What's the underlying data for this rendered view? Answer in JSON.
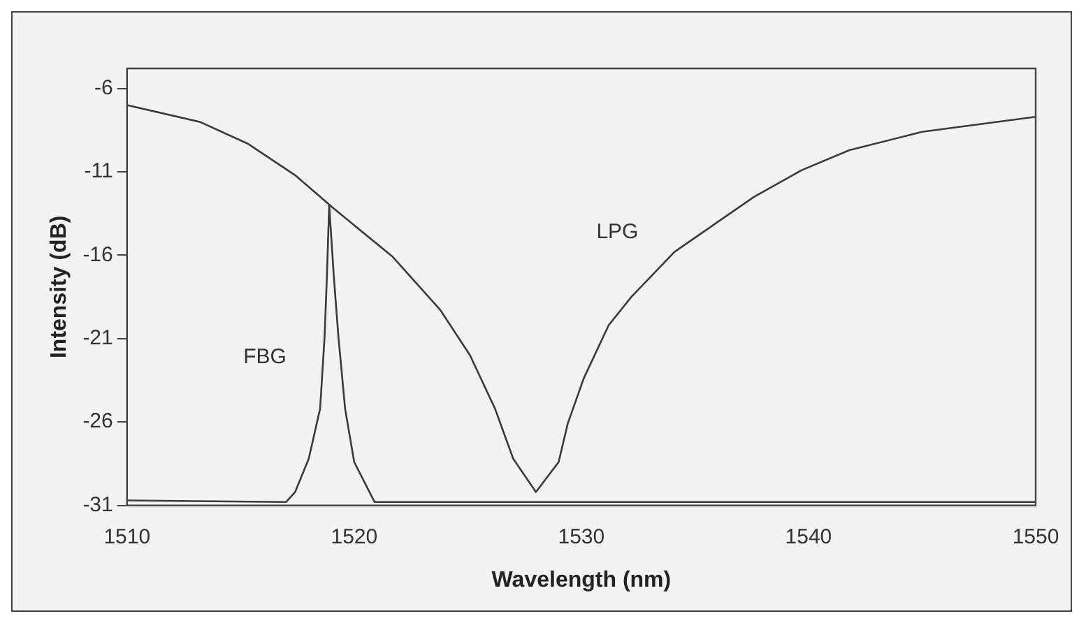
{
  "chart_data": {
    "type": "line",
    "xlabel": "Wavelength (nm)",
    "ylabel": "Intensity (dB)",
    "xlim": [
      1510,
      1550
    ],
    "xticks": [
      1510,
      1520,
      1530,
      1540,
      1550
    ],
    "ylim": [
      -31,
      -4.8
    ],
    "yticks": [
      -31,
      -26,
      -21,
      -16,
      -11,
      -6
    ],
    "grid": false,
    "legend": false,
    "marker": "none",
    "line_style": "solid",
    "series": [
      {
        "name": "LPG",
        "color": "#3a3a3a",
        "x": [
          1510,
          1513.2,
          1515.3,
          1517.4,
          1519.1,
          1521.7,
          1523.8,
          1525.1,
          1526.2,
          1527.0,
          1528.0,
          1529.0,
          1529.4,
          1530.1,
          1531.2,
          1532.2,
          1534.1,
          1537.6,
          1539.7,
          1541.8,
          1545.0,
          1550
        ],
        "values": [
          -7.0,
          -8.0,
          -9.3,
          -11.2,
          -13.2,
          -16.1,
          -19.3,
          -22.0,
          -25.2,
          -28.2,
          -30.2,
          -28.4,
          -26.1,
          -23.4,
          -20.2,
          -18.5,
          -15.8,
          -12.5,
          -10.9,
          -9.7,
          -8.6,
          -7.7
        ]
      },
      {
        "name": "FBG",
        "color": "#3a3a3a",
        "x": [
          1510,
          1517.0,
          1517.4,
          1518.0,
          1518.5,
          1518.7,
          1518.8,
          1518.9,
          1519.1,
          1519.3,
          1519.6,
          1520.0,
          1520.9,
          1550
        ],
        "values": [
          -30.7,
          -30.8,
          -30.2,
          -28.2,
          -25.2,
          -20.8,
          -17.2,
          -13.0,
          -17.2,
          -20.8,
          -25.2,
          -28.4,
          -30.8,
          -30.8
        ]
      }
    ]
  }
}
